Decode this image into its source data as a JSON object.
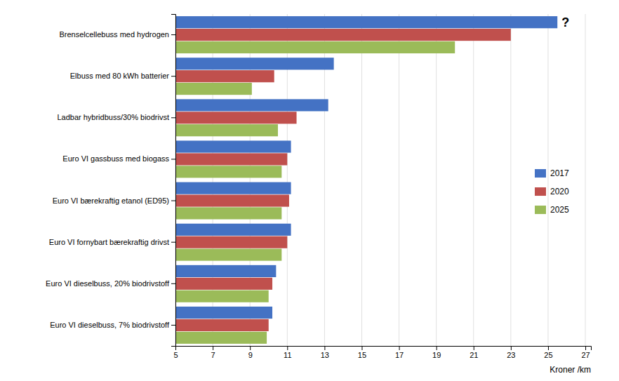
{
  "chart_data": {
    "type": "bar",
    "orientation": "horizontal",
    "categories": [
      "Euro VI dieselbuss, 7% biodrivstoff",
      "Euro VI dieselbuss, 20% biodrivstoff",
      "Euro VI fornybart bærekraftig drivst",
      "Euro VI bærekraftig etanol (ED95)",
      "Euro VI gassbuss med biogass",
      "Ladbar hybridbuss/30% biodrivst",
      "Elbuss med 80 kWh batterier",
      "Brenselcellebuss med hydrogen"
    ],
    "series": [
      {
        "name": "2017",
        "color": "#4472C4",
        "values": [
          10.2,
          10.4,
          11.2,
          11.2,
          11.2,
          13.2,
          13.5,
          25.5
        ]
      },
      {
        "name": "2020",
        "color": "#C0504D",
        "values": [
          10.0,
          10.2,
          11.0,
          11.1,
          11.0,
          11.5,
          10.3,
          23.0
        ]
      },
      {
        "name": "2025",
        "color": "#9BBB59",
        "values": [
          9.9,
          10.0,
          10.7,
          10.7,
          10.7,
          10.5,
          9.1,
          20.0
        ]
      }
    ],
    "xlabel": "Kroner /km",
    "xlim": [
      5,
      27.3
    ],
    "xticks": [
      5,
      7,
      9,
      11,
      13,
      15,
      17,
      19,
      21,
      23,
      25,
      27
    ],
    "grid": true,
    "legend": "right",
    "annotations": [
      "?"
    ]
  }
}
